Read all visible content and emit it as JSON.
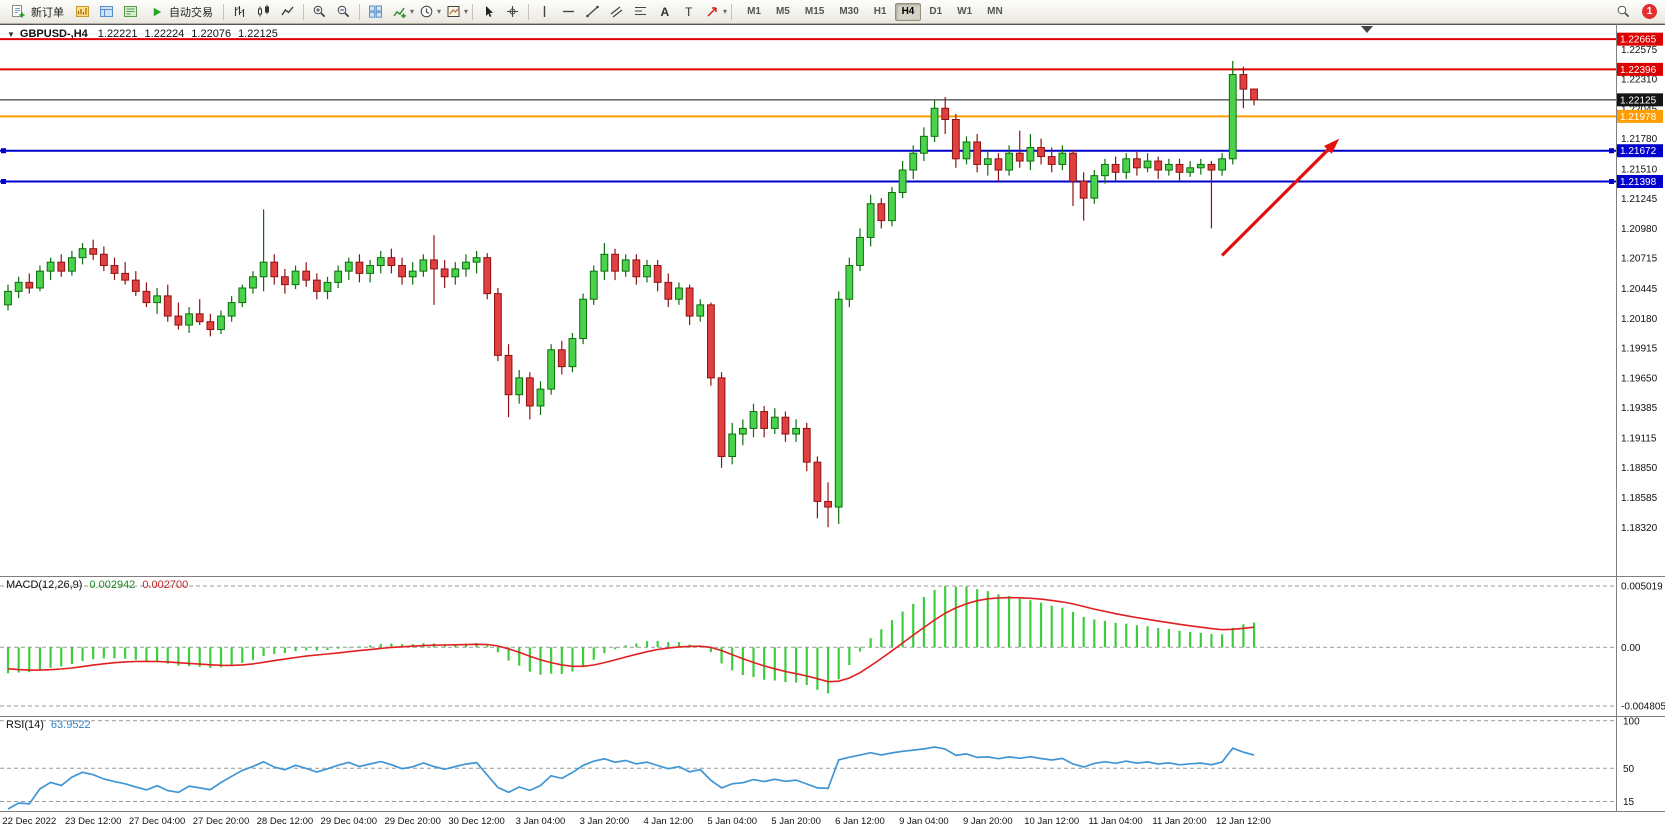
{
  "toolbar": {
    "new_order": "新订单",
    "autotrading": "自动交易",
    "timeframes": [
      "M1",
      "M5",
      "M15",
      "M30",
      "H1",
      "H4",
      "D1",
      "W1",
      "MN"
    ],
    "active_timeframe": "H4",
    "notification_count": "1",
    "icon_names": [
      "new-order-icon",
      "market-watch-icon",
      "data-window-icon",
      "navigator-icon",
      "autotrading-icon",
      "bar-chart-icon",
      "candlestick-chart-icon",
      "line-chart-icon",
      "zoom-in-icon",
      "zoom-out-icon",
      "tile-windows-icon",
      "indicators-icon",
      "periods-icon",
      "templates-icon",
      "cursor-icon",
      "crosshair-icon",
      "vertical-line-icon",
      "horizontal-line-icon",
      "trendline-icon",
      "channel-icon",
      "fibonacci-icon",
      "text-icon",
      "label-icon",
      "arrows-icon",
      "search-icon"
    ]
  },
  "chart_title": {
    "symbol_period": "GBPUSD-,H4",
    "open": "1.22221",
    "high": "1.22224",
    "low": "1.22076",
    "close": "1.22125"
  },
  "chart_data": {
    "type": "candlestick",
    "symbol": "GBPUSD-",
    "period": "H4",
    "price_axis_labels": [
      "1.22575",
      "1.22310",
      "1.22045",
      "1.21780",
      "1.21510",
      "1.21245",
      "1.20980",
      "1.20715",
      "1.20445",
      "1.20180",
      "1.19915",
      "1.19650",
      "1.19385",
      "1.19115",
      "1.18850",
      "1.18585",
      "1.18320"
    ],
    "time_axis": [
      {
        "text": "22 Dec 2022",
        "bar": 2
      },
      {
        "text": "23 Dec 12:00",
        "bar": 8
      },
      {
        "text": "27 Dec 04:00",
        "bar": 14
      },
      {
        "text": "27 Dec 20:00",
        "bar": 20
      },
      {
        "text": "28 Dec 12:00",
        "bar": 26
      },
      {
        "text": "29 Dec 04:00",
        "bar": 32
      },
      {
        "text": "29 Dec 20:00",
        "bar": 38
      },
      {
        "text": "30 Dec 12:00",
        "bar": 44
      },
      {
        "text": "3 Jan 04:00",
        "bar": 50
      },
      {
        "text": "3 Jan 20:00",
        "bar": 56
      },
      {
        "text": "4 Jan 12:00",
        "bar": 62
      },
      {
        "text": "5 Jan 04:00",
        "bar": 68
      },
      {
        "text": "5 Jan 20:00",
        "bar": 74
      },
      {
        "text": "6 Jan 12:00",
        "bar": 80
      },
      {
        "text": "9 Jan 04:00",
        "bar": 86
      },
      {
        "text": "9 Jan 20:00",
        "bar": 92
      },
      {
        "text": "10 Jan 12:00",
        "bar": 98
      },
      {
        "text": "11 Jan 04:00",
        "bar": 104
      },
      {
        "text": "11 Jan 20:00",
        "bar": 110
      },
      {
        "text": "12 Jan 12:00",
        "bar": 116
      }
    ],
    "price_lines": [
      {
        "label": "1.22665",
        "price": 1.22665,
        "color": "#dd0000",
        "width": 2,
        "handles": false
      },
      {
        "label": "1.22396",
        "price": 1.22396,
        "color": "#dd0000",
        "width": 2,
        "handles": false
      },
      {
        "label": "1.22125",
        "price": 1.22125,
        "color": "#151515",
        "width": 1,
        "handles": false
      },
      {
        "label": "1.21978",
        "price": 1.21978,
        "color": "#ff9d00",
        "width": 2,
        "handles": false
      },
      {
        "label": "1.21672",
        "price": 1.21672,
        "color": "#0000cc",
        "width": 2,
        "handles": true
      },
      {
        "label": "1.21398",
        "price": 1.21398,
        "color": "#0000cc",
        "width": 2,
        "handles": true
      }
    ],
    "arrow": {
      "from_bar": 114,
      "from_price": 1.2074,
      "to_bar": 125,
      "to_price": 1.2178,
      "color": "#e01010"
    },
    "candles": [
      [
        1.203,
        1.2048,
        1.2025,
        1.2042
      ],
      [
        1.2042,
        1.2055,
        1.2036,
        1.205
      ],
      [
        1.205,
        1.2058,
        1.204,
        1.2045
      ],
      [
        1.2045,
        1.2065,
        1.2042,
        1.206
      ],
      [
        1.206,
        1.2072,
        1.2052,
        1.2068
      ],
      [
        1.2068,
        1.2075,
        1.2055,
        1.206
      ],
      [
        1.206,
        1.2078,
        1.2056,
        1.2072
      ],
      [
        1.2072,
        1.2085,
        1.2066,
        1.208
      ],
      [
        1.208,
        1.2088,
        1.207,
        1.2075
      ],
      [
        1.2075,
        1.2082,
        1.206,
        1.2065
      ],
      [
        1.2065,
        1.2072,
        1.2052,
        1.2058
      ],
      [
        1.2058,
        1.2068,
        1.2048,
        1.2052
      ],
      [
        1.2052,
        1.206,
        1.2038,
        1.2042
      ],
      [
        1.2042,
        1.205,
        1.2028,
        1.2032
      ],
      [
        1.2032,
        1.2045,
        1.2022,
        1.2038
      ],
      [
        1.2038,
        1.2048,
        1.2015,
        1.202
      ],
      [
        1.202,
        1.2032,
        1.2008,
        1.2012
      ],
      [
        1.2012,
        1.2028,
        1.2005,
        1.2022
      ],
      [
        1.2022,
        1.2035,
        1.2012,
        1.2015
      ],
      [
        1.2015,
        1.2022,
        1.2002,
        1.2008
      ],
      [
        1.2008,
        1.2025,
        1.2004,
        1.202
      ],
      [
        1.202,
        1.2038,
        1.2015,
        1.2032
      ],
      [
        1.2032,
        1.2048,
        1.2028,
        1.2045
      ],
      [
        1.2045,
        1.206,
        1.204,
        1.2055
      ],
      [
        1.2055,
        1.2115,
        1.2042,
        1.2068
      ],
      [
        1.2068,
        1.2075,
        1.2048,
        1.2055
      ],
      [
        1.2055,
        1.2062,
        1.204,
        1.2048
      ],
      [
        1.2048,
        1.2065,
        1.2044,
        1.206
      ],
      [
        1.206,
        1.2068,
        1.2046,
        1.2052
      ],
      [
        1.2052,
        1.2058,
        1.2035,
        1.2042
      ],
      [
        1.2042,
        1.2055,
        1.2035,
        1.205
      ],
      [
        1.205,
        1.2065,
        1.2045,
        1.206
      ],
      [
        1.206,
        1.2072,
        1.2052,
        1.2068
      ],
      [
        1.2068,
        1.2075,
        1.205,
        1.2058
      ],
      [
        1.2058,
        1.207,
        1.205,
        1.2065
      ],
      [
        1.2065,
        1.2078,
        1.2058,
        1.2072
      ],
      [
        1.2072,
        1.208,
        1.2058,
        1.2065
      ],
      [
        1.2065,
        1.2072,
        1.2048,
        1.2055
      ],
      [
        1.2055,
        1.2068,
        1.2048,
        1.206
      ],
      [
        1.206,
        1.2075,
        1.2055,
        1.207
      ],
      [
        1.207,
        1.2092,
        1.203,
        1.2062
      ],
      [
        1.2062,
        1.207,
        1.2045,
        1.2055
      ],
      [
        1.2055,
        1.2068,
        1.2048,
        1.2062
      ],
      [
        1.2062,
        1.2075,
        1.2055,
        1.2068
      ],
      [
        1.2068,
        1.2078,
        1.2058,
        1.2072
      ],
      [
        1.2072,
        1.2076,
        1.2035,
        1.204
      ],
      [
        1.204,
        1.2045,
        1.198,
        1.1985
      ],
      [
        1.1985,
        1.1995,
        1.193,
        1.195
      ],
      [
        1.195,
        1.1972,
        1.1942,
        1.1965
      ],
      [
        1.1965,
        1.197,
        1.1928,
        1.194
      ],
      [
        1.194,
        1.1962,
        1.1932,
        1.1955
      ],
      [
        1.1955,
        1.1995,
        1.195,
        1.199
      ],
      [
        1.199,
        1.1998,
        1.1968,
        1.1975
      ],
      [
        1.1975,
        1.2005,
        1.197,
        1.2
      ],
      [
        1.2,
        1.204,
        1.1995,
        1.2035
      ],
      [
        1.2035,
        1.2065,
        1.203,
        1.206
      ],
      [
        1.206,
        1.2085,
        1.2052,
        1.2075
      ],
      [
        1.2075,
        1.208,
        1.2052,
        1.206
      ],
      [
        1.206,
        1.2075,
        1.2055,
        1.207
      ],
      [
        1.207,
        1.2075,
        1.2048,
        1.2055
      ],
      [
        1.2055,
        1.207,
        1.205,
        1.2065
      ],
      [
        1.2065,
        1.207,
        1.2042,
        1.205
      ],
      [
        1.205,
        1.2058,
        1.2028,
        1.2035
      ],
      [
        1.2035,
        1.205,
        1.203,
        1.2045
      ],
      [
        1.2045,
        1.2048,
        1.2012,
        1.202
      ],
      [
        1.202,
        1.2035,
        1.2015,
        1.203
      ],
      [
        1.203,
        1.2032,
        1.1958,
        1.1965
      ],
      [
        1.1965,
        1.197,
        1.1885,
        1.1895
      ],
      [
        1.1895,
        1.1925,
        1.1888,
        1.1915
      ],
      [
        1.1915,
        1.1928,
        1.1905,
        1.192
      ],
      [
        1.192,
        1.1942,
        1.1912,
        1.1935
      ],
      [
        1.1935,
        1.194,
        1.1912,
        1.192
      ],
      [
        1.192,
        1.1938,
        1.1915,
        1.193
      ],
      [
        1.193,
        1.1935,
        1.1908,
        1.1915
      ],
      [
        1.1915,
        1.1928,
        1.1908,
        1.192
      ],
      [
        1.192,
        1.1925,
        1.1882,
        1.189
      ],
      [
        1.189,
        1.1895,
        1.184,
        1.1855
      ],
      [
        1.1855,
        1.1872,
        1.1832,
        1.185
      ],
      [
        1.185,
        1.2042,
        1.1835,
        1.2035
      ],
      [
        1.2035,
        1.2072,
        1.2028,
        1.2065
      ],
      [
        1.2065,
        1.2098,
        1.206,
        1.209
      ],
      [
        1.209,
        1.2128,
        1.2082,
        1.212
      ],
      [
        1.212,
        1.2125,
        1.2098,
        1.2105
      ],
      [
        1.2105,
        1.2135,
        1.21,
        1.213
      ],
      [
        1.213,
        1.2158,
        1.2125,
        1.215
      ],
      [
        1.215,
        1.2172,
        1.2142,
        1.2165
      ],
      [
        1.2165,
        1.2188,
        1.2158,
        1.218
      ],
      [
        1.218,
        1.2212,
        1.2175,
        1.2205
      ],
      [
        1.2205,
        1.2215,
        1.2182,
        1.2195
      ],
      [
        1.2195,
        1.22,
        1.2152,
        1.216
      ],
      [
        1.216,
        1.218,
        1.2155,
        1.2175
      ],
      [
        1.2175,
        1.2182,
        1.2148,
        1.2155
      ],
      [
        1.2155,
        1.2168,
        1.2145,
        1.216
      ],
      [
        1.216,
        1.2165,
        1.214,
        1.215
      ],
      [
        1.215,
        1.2172,
        1.2145,
        1.2165
      ],
      [
        1.2165,
        1.2185,
        1.2152,
        1.2158
      ],
      [
        1.2158,
        1.2182,
        1.215,
        1.217
      ],
      [
        1.217,
        1.2178,
        1.2155,
        1.2162
      ],
      [
        1.2162,
        1.217,
        1.2148,
        1.2155
      ],
      [
        1.2155,
        1.2172,
        1.215,
        1.2165
      ],
      [
        1.2165,
        1.2168,
        1.2118,
        1.214
      ],
      [
        1.214,
        1.2148,
        1.2105,
        1.2125
      ],
      [
        1.2125,
        1.215,
        1.212,
        1.2145
      ],
      [
        1.2145,
        1.216,
        1.2138,
        1.2155
      ],
      [
        1.2155,
        1.2162,
        1.214,
        1.2148
      ],
      [
        1.2148,
        1.2165,
        1.2142,
        1.216
      ],
      [
        1.216,
        1.2166,
        1.2145,
        1.2152
      ],
      [
        1.2152,
        1.2165,
        1.2148,
        1.2158
      ],
      [
        1.2158,
        1.2162,
        1.2142,
        1.215
      ],
      [
        1.215,
        1.216,
        1.2145,
        1.2155
      ],
      [
        1.2155,
        1.216,
        1.214,
        1.2148
      ],
      [
        1.2148,
        1.2158,
        1.2144,
        1.2152
      ],
      [
        1.2152,
        1.216,
        1.2146,
        1.2155
      ],
      [
        1.2155,
        1.2158,
        1.2098,
        1.215
      ],
      [
        1.215,
        1.2165,
        1.2145,
        1.216
      ],
      [
        1.216,
        1.2247,
        1.2155,
        1.2235
      ],
      [
        1.2235,
        1.2242,
        1.2205,
        1.2222
      ],
      [
        1.22221,
        1.22224,
        1.22076,
        1.22125
      ]
    ],
    "macd": {
      "label": "MACD(12,26,9)",
      "values": [
        "0.002942",
        "0.002700"
      ],
      "axis_labels": [
        "0.005019",
        "0.00",
        "-0.004805"
      ],
      "axis_values": [
        0.005019,
        0,
        -0.004805
      ]
    },
    "rsi": {
      "label": "RSI(14)",
      "value": "63.9522",
      "axis_labels": [
        "100",
        "50",
        "15"
      ],
      "axis_values": [
        100,
        50,
        15
      ]
    },
    "colors": {
      "bull": "#4ad24a",
      "bull_border": "#0d6e0d",
      "bear": "#e04040",
      "bear_border": "#8f1212",
      "macd_hist": "#3ecc3e",
      "macd_signal": "#e02020",
      "rsi": "#3f96d4",
      "axis_text": "#111111"
    }
  }
}
